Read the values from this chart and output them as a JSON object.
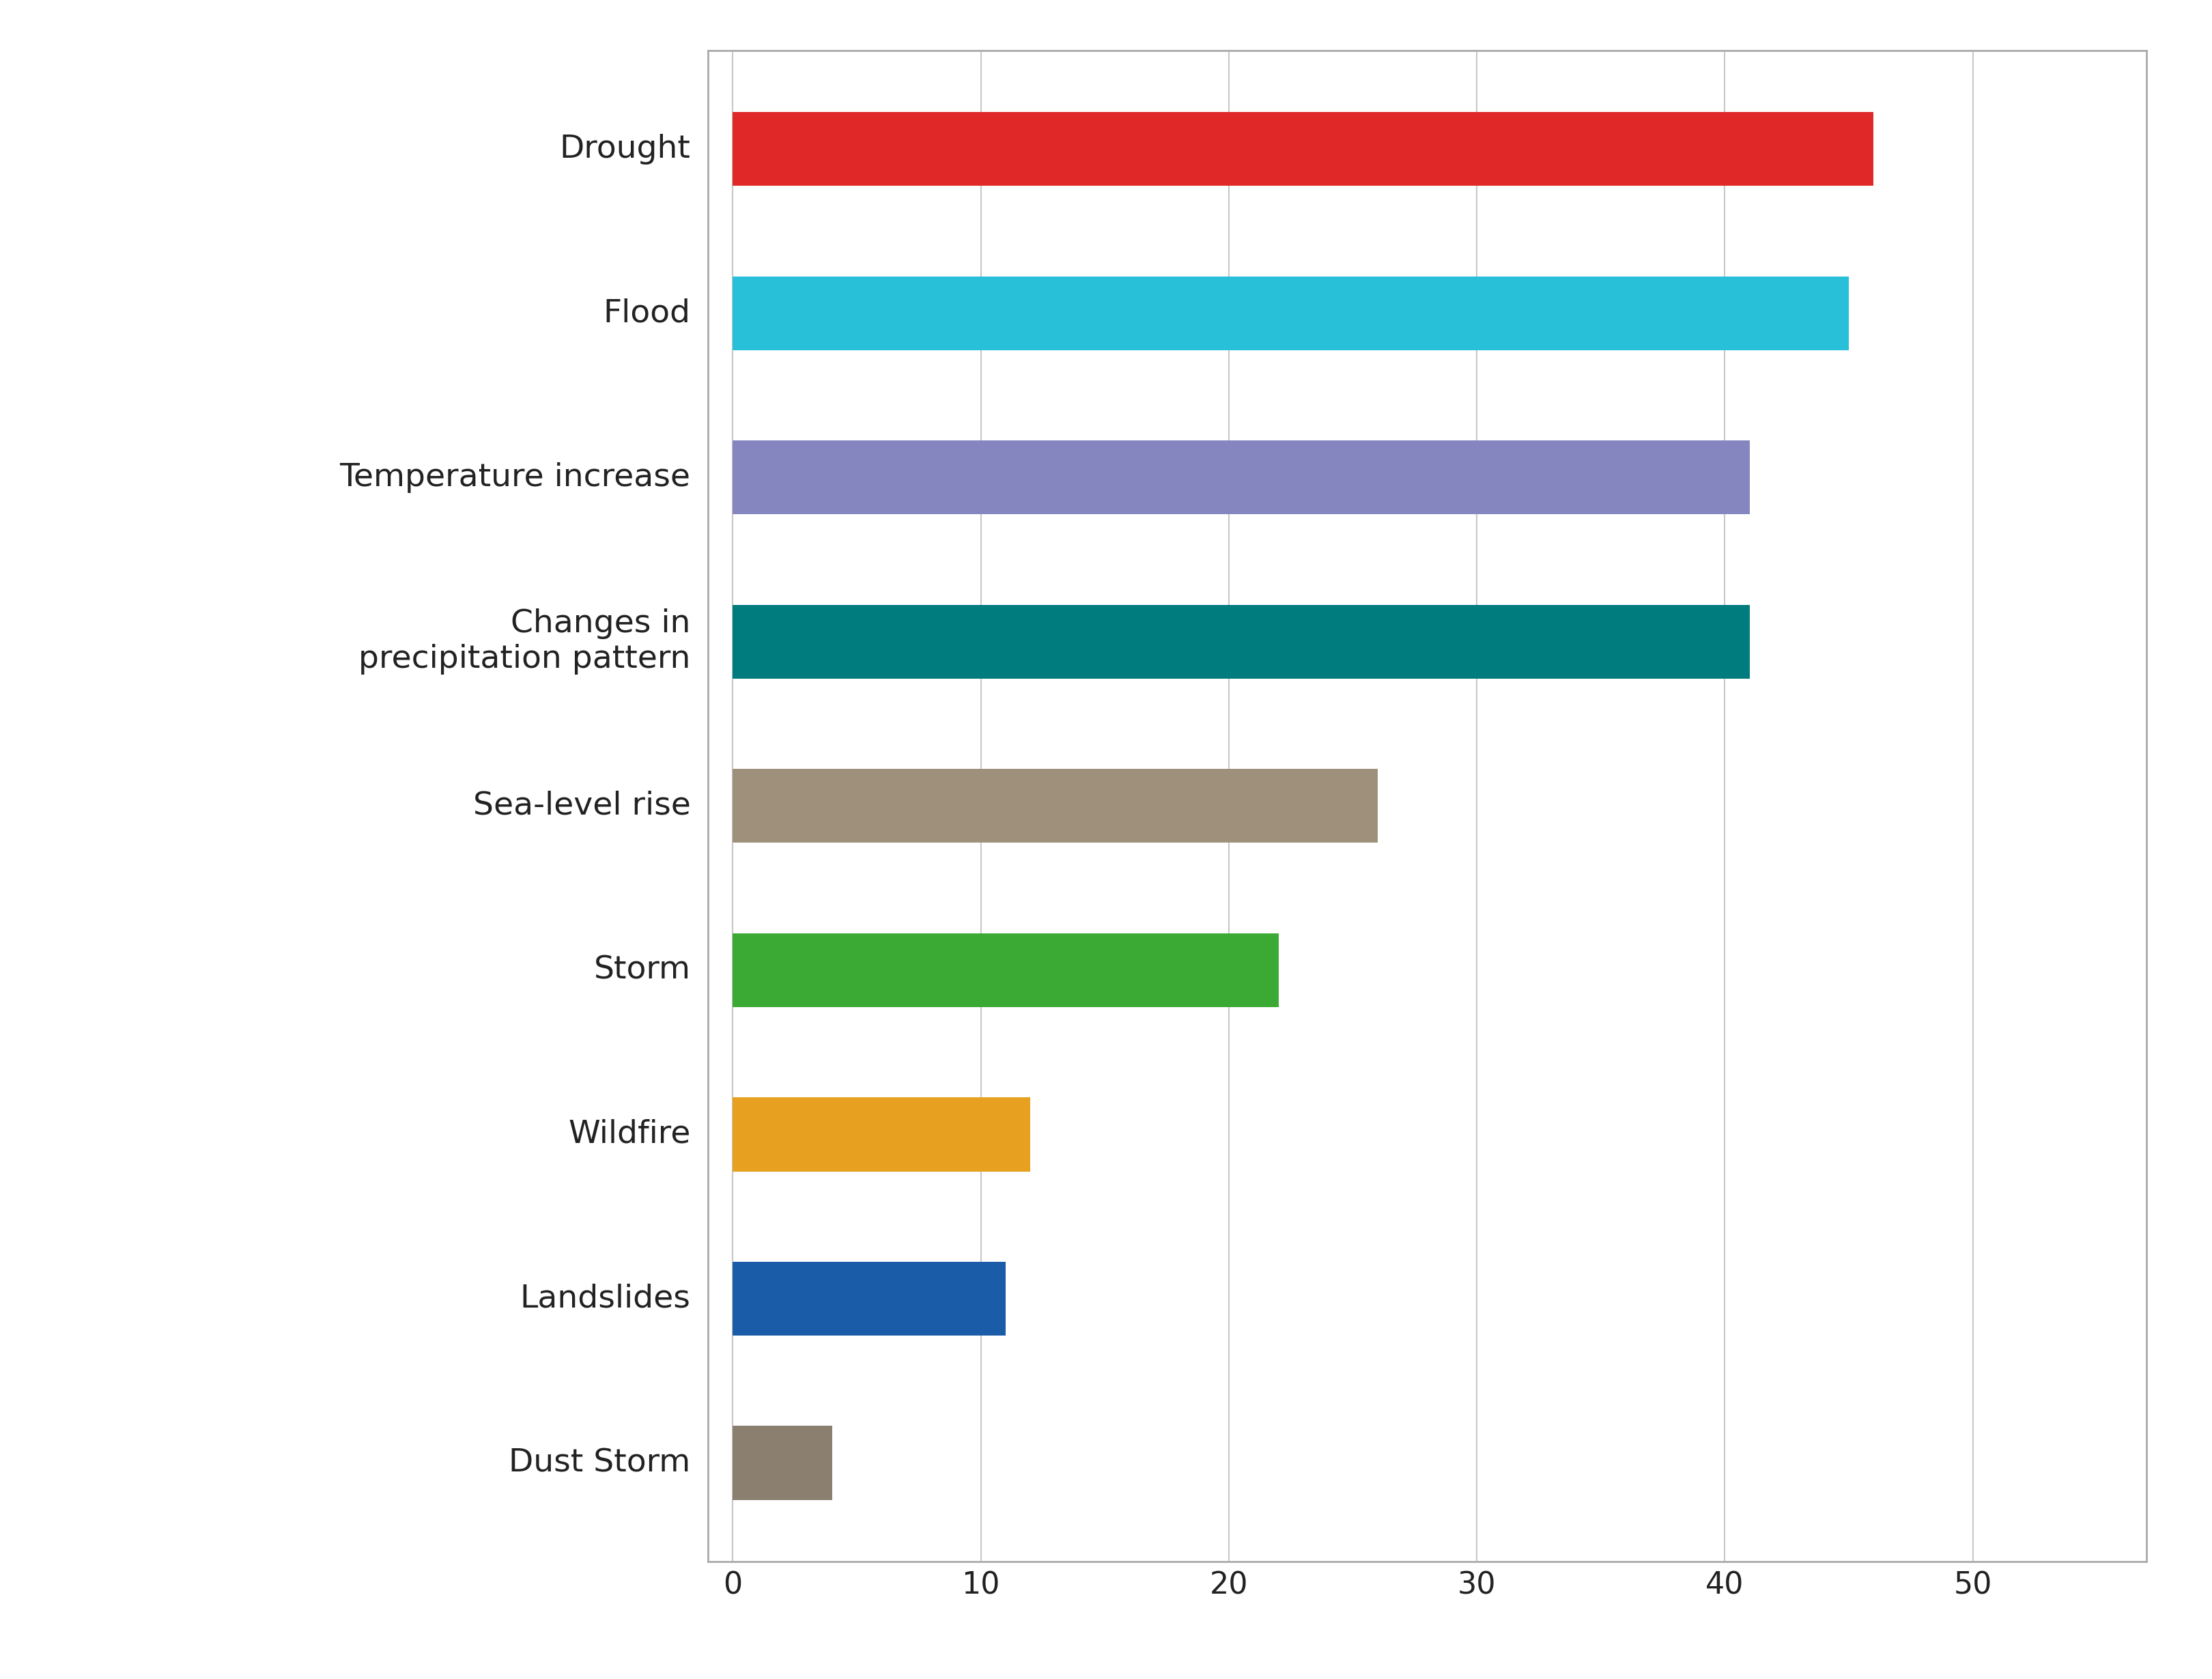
{
  "categories": [
    "Dust Storm",
    "Landslides",
    "Wildfire",
    "Storm",
    "Sea-level rise",
    "Changes in\nprecipitation pattern",
    "Temperature increase",
    "Flood",
    "Drought"
  ],
  "values": [
    4,
    11,
    12,
    22,
    26,
    41,
    41,
    45,
    46
  ],
  "colors": [
    "#8b8070",
    "#1a5ca8",
    "#e8a020",
    "#3aaa35",
    "#9e907a",
    "#007b7e",
    "#8585c0",
    "#28c0d8",
    "#e02828"
  ],
  "xlim": [
    -1,
    57
  ],
  "xticks": [
    0,
    10,
    20,
    30,
    40,
    50
  ],
  "background_color": "#ffffff",
  "plot_bg_color": "#ffffff",
  "bar_height": 0.45,
  "grid_color": "#c8c8c8",
  "label_fontsize": 34,
  "tick_fontsize": 32,
  "label_color": "#222222",
  "border_color": "#aaaaaa"
}
